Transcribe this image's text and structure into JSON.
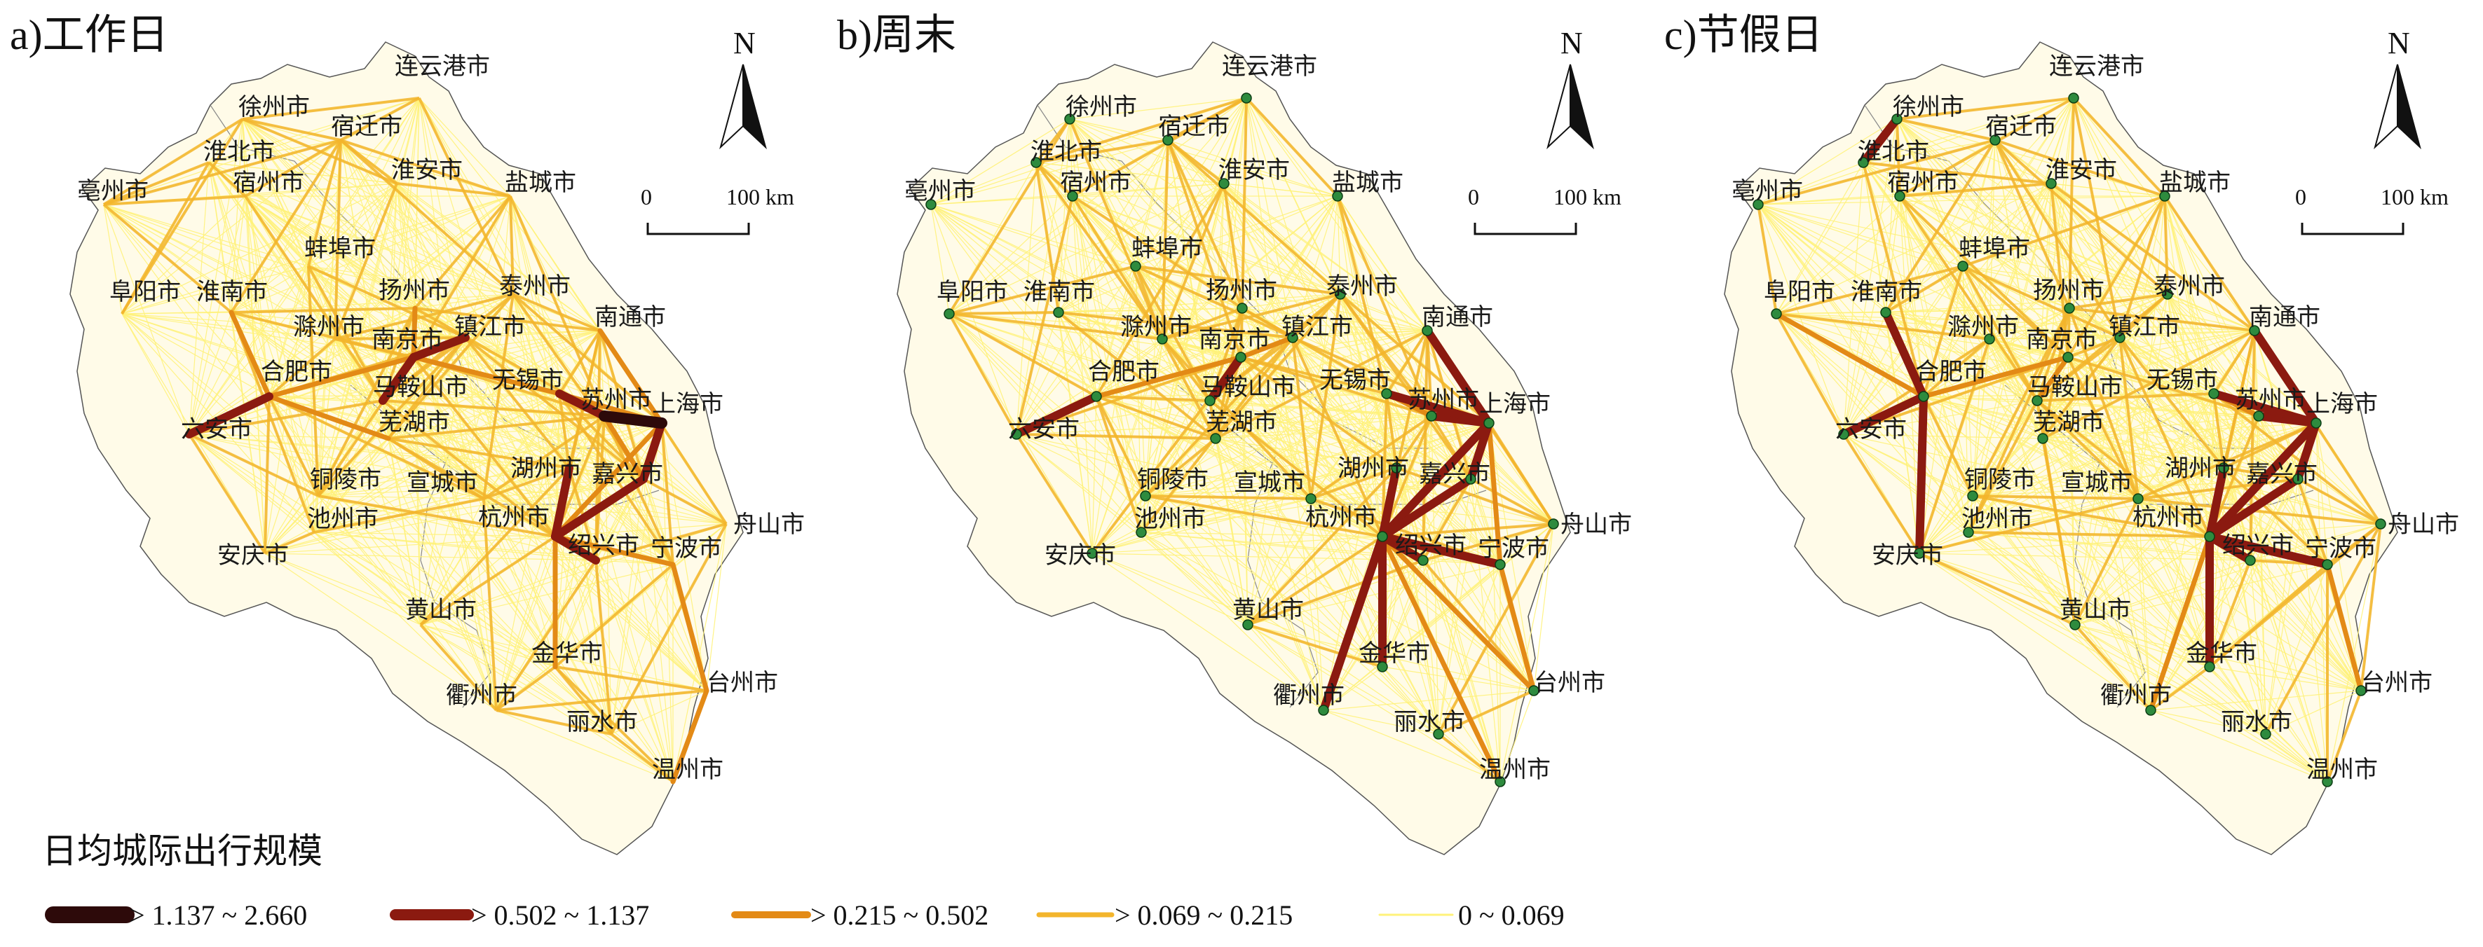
{
  "figure": {
    "panels": [
      {
        "id": "a",
        "title": "a)工作日",
        "show_nodes": false
      },
      {
        "id": "b",
        "title": "b)周末",
        "show_nodes": true
      },
      {
        "id": "c",
        "title": "c)节假日",
        "show_nodes": true
      }
    ],
    "north_label": "N",
    "scale_bar": {
      "start": "0",
      "end": "100 km"
    },
    "legend": {
      "title": "日均城际出行规模",
      "classes": [
        {
          "label": "> 1.137 ~ 2.660",
          "color": "#2d0a0a"
        },
        {
          "label": "> 0.502 ~ 1.137",
          "color": "#8b1a10"
        },
        {
          "label": "> 0.215 ~ 0.502",
          "color": "#e38a16"
        },
        {
          "label": "> 0.069 ~ 0.215",
          "color": "#f3b52c"
        },
        {
          "label": "0 ~ 0.069",
          "color": "#fff27a"
        }
      ]
    },
    "cities": [
      {
        "name": "连云港市"
      },
      {
        "name": "徐州市"
      },
      {
        "name": "宿迁市"
      },
      {
        "name": "亳州市"
      },
      {
        "name": "淮北市"
      },
      {
        "name": "宿州市"
      },
      {
        "name": "淮安市"
      },
      {
        "name": "盐城市"
      },
      {
        "name": "蚌埠市"
      },
      {
        "name": "阜阳市"
      },
      {
        "name": "淮南市"
      },
      {
        "name": "扬州市"
      },
      {
        "name": "泰州市"
      },
      {
        "name": "滁州市"
      },
      {
        "name": "镇江市"
      },
      {
        "name": "南通市"
      },
      {
        "name": "南京市"
      },
      {
        "name": "合肥市"
      },
      {
        "name": "马鞍山市"
      },
      {
        "name": "无锡市"
      },
      {
        "name": "上海市"
      },
      {
        "name": "六安市"
      },
      {
        "name": "苏州市"
      },
      {
        "name": "芜湖市"
      },
      {
        "name": "湖州市"
      },
      {
        "name": "嘉兴市"
      },
      {
        "name": "铜陵市"
      },
      {
        "name": "宣城市"
      },
      {
        "name": "舟山市"
      },
      {
        "name": "池州市"
      },
      {
        "name": "杭州市"
      },
      {
        "name": "安庆市"
      },
      {
        "name": "绍兴市"
      },
      {
        "name": "宁波市"
      },
      {
        "name": "黄山市"
      },
      {
        "name": "金华市"
      },
      {
        "name": "衢州市"
      },
      {
        "name": "台州市"
      },
      {
        "name": "丽水市"
      },
      {
        "name": "温州市"
      }
    ],
    "flows": {
      "a": [
        {
          "from": "上海市",
          "to": "苏州市",
          "class": 0
        },
        {
          "from": "苏州市",
          "to": "无锡市",
          "class": 1
        },
        {
          "from": "上海市",
          "to": "嘉兴市",
          "class": 1
        },
        {
          "from": "杭州市",
          "to": "嘉兴市",
          "class": 1
        },
        {
          "from": "杭州市",
          "to": "绍兴市",
          "class": 1
        },
        {
          "from": "杭州市",
          "to": "湖州市",
          "class": 1
        },
        {
          "from": "合肥市",
          "to": "六安市",
          "class": 1
        },
        {
          "from": "南京市",
          "to": "镇江市",
          "class": 1
        },
        {
          "from": "南京市",
          "to": "马鞍山市",
          "class": 1
        },
        {
          "from": "上海市",
          "to": "杭州市",
          "class": 2
        },
        {
          "from": "上海市",
          "to": "南通市",
          "class": 2
        },
        {
          "from": "上海市",
          "to": "无锡市",
          "class": 2
        },
        {
          "from": "苏州市",
          "to": "嘉兴市",
          "class": 2
        },
        {
          "from": "南京市",
          "to": "合肥市",
          "class": 2
        },
        {
          "from": "无锡市",
          "to": "南京市",
          "class": 2
        },
        {
          "from": "杭州市",
          "to": "宁波市",
          "class": 2
        },
        {
          "from": "杭州市",
          "to": "金华市",
          "class": 2
        },
        {
          "from": "南京市",
          "to": "扬州市",
          "class": 2
        },
        {
          "from": "合肥市",
          "to": "淮南市",
          "class": 2
        },
        {
          "from": "合肥市",
          "to": "芜湖市",
          "class": 2
        },
        {
          "from": "宁波市",
          "to": "台州市",
          "class": 2
        },
        {
          "from": "台州市",
          "to": "温州市",
          "class": 2
        }
      ],
      "b": [
        {
          "from": "上海市",
          "to": "苏州市",
          "class": 1
        },
        {
          "from": "上海市",
          "to": "嘉兴市",
          "class": 1
        },
        {
          "from": "上海市",
          "to": "无锡市",
          "class": 1
        },
        {
          "from": "上海市",
          "to": "杭州市",
          "class": 1
        },
        {
          "from": "上海市",
          "to": "南通市",
          "class": 1
        },
        {
          "from": "杭州市",
          "to": "绍兴市",
          "class": 1
        },
        {
          "from": "杭州市",
          "to": "嘉兴市",
          "class": 1
        },
        {
          "from": "杭州市",
          "to": "湖州市",
          "class": 1
        },
        {
          "from": "杭州市",
          "to": "金华市",
          "class": 1
        },
        {
          "from": "杭州市",
          "to": "衢州市",
          "class": 1
        },
        {
          "from": "杭州市",
          "to": "宁波市",
          "class": 1
        },
        {
          "from": "合肥市",
          "to": "六安市",
          "class": 1
        },
        {
          "from": "南京市",
          "to": "马鞍山市",
          "class": 1
        },
        {
          "from": "南京市",
          "to": "镇江市",
          "class": 2
        },
        {
          "from": "苏州市",
          "to": "无锡市",
          "class": 2
        },
        {
          "from": "南京市",
          "to": "合肥市",
          "class": 2
        },
        {
          "from": "上海市",
          "to": "宁波市",
          "class": 2
        },
        {
          "from": "杭州市",
          "to": "台州市",
          "class": 2
        },
        {
          "from": "宁波市",
          "to": "台州市",
          "class": 2
        },
        {
          "from": "杭州市",
          "to": "温州市",
          "class": 2
        }
      ],
      "c": [
        {
          "from": "上海市",
          "to": "苏州市",
          "class": 1
        },
        {
          "from": "上海市",
          "to": "嘉兴市",
          "class": 1
        },
        {
          "from": "上海市",
          "to": "无锡市",
          "class": 1
        },
        {
          "from": "上海市",
          "to": "杭州市",
          "class": 1
        },
        {
          "from": "上海市",
          "to": "南通市",
          "class": 1
        },
        {
          "from": "杭州市",
          "to": "绍兴市",
          "class": 1
        },
        {
          "from": "杭州市",
          "to": "嘉兴市",
          "class": 1
        },
        {
          "from": "杭州市",
          "to": "湖州市",
          "class": 1
        },
        {
          "from": "杭州市",
          "to": "金华市",
          "class": 1
        },
        {
          "from": "杭州市",
          "to": "宁波市",
          "class": 1
        },
        {
          "from": "合肥市",
          "to": "六安市",
          "class": 1
        },
        {
          "from": "合肥市",
          "to": "淮南市",
          "class": 1
        },
        {
          "from": "合肥市",
          "to": "安庆市",
          "class": 1
        },
        {
          "from": "淮北市",
          "to": "徐州市",
          "class": 1
        },
        {
          "from": "南京市",
          "to": "马鞍山市",
          "class": 2
        },
        {
          "from": "南京市",
          "to": "合肥市",
          "class": 2
        },
        {
          "from": "苏州市",
          "to": "无锡市",
          "class": 2
        },
        {
          "from": "杭州市",
          "to": "衢州市",
          "class": 2
        },
        {
          "from": "宁波市",
          "to": "台州市",
          "class": 2
        },
        {
          "from": "合肥市",
          "to": "阜阳市",
          "class": 2
        }
      ]
    }
  }
}
